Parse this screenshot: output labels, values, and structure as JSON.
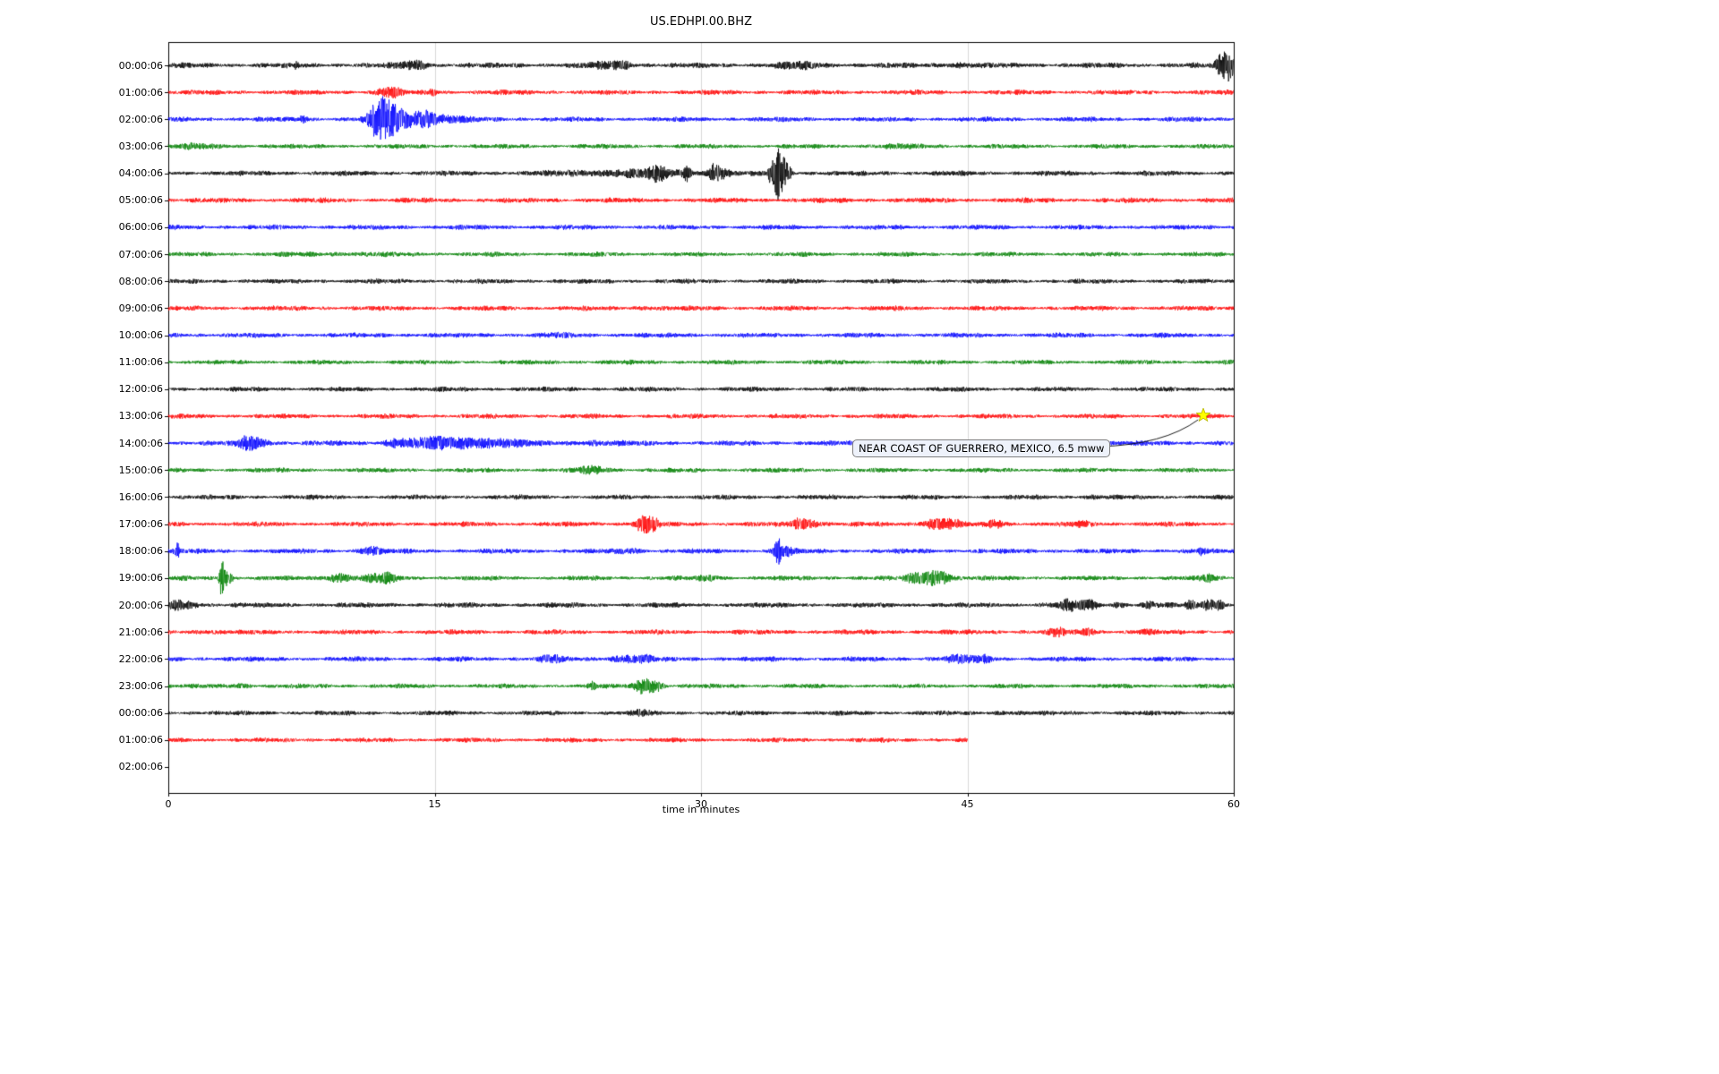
{
  "chart_data": {
    "type": "line",
    "chart_kind": "seismogram-day-plot",
    "title": "US.EDHPI.00.BHZ",
    "xlabel": "time in minutes",
    "xlim": [
      0,
      60
    ],
    "x_ticks": [
      0,
      15,
      30,
      45,
      60
    ],
    "x_tick_labels": [
      "0",
      "15",
      "30",
      "45",
      "60"
    ],
    "grid_minutes": [
      15,
      30,
      45
    ],
    "grid_color": "#d9d9d9",
    "color_cycle": [
      "#000000",
      "#ff0000",
      "#0000ff",
      "#008000"
    ],
    "annotation": {
      "text": "NEAR COAST OF GUERRERO, MEXICO, 6.5 mww",
      "box_color": "#eef2fb",
      "border_color": "#7f7f7f"
    },
    "event_marker": {
      "row_index": 13,
      "row_label": "13:00:06",
      "t_minutes": 58.3,
      "symbol": "star",
      "color": "#ffff00"
    },
    "rows": [
      {
        "label": "00:00:06",
        "color": "#000000",
        "base": 2.8,
        "duration_min": 60,
        "events": [
          {
            "t": 7.2,
            "a": 5,
            "w": 0.08
          },
          {
            "t": 13.6,
            "a": 3,
            "w": 0.5
          },
          {
            "t": 14.3,
            "a": 2.5,
            "w": 0.3
          },
          {
            "t": 24.8,
            "a": 2.5,
            "w": 0.8
          },
          {
            "t": 25.6,
            "a": 2,
            "w": 0.4
          },
          {
            "t": 35.5,
            "a": 2.5,
            "w": 1.0
          },
          {
            "t": 44.5,
            "a": 1.5,
            "w": 0.8
          },
          {
            "t": 59.4,
            "a": 14,
            "w": 0.25
          },
          {
            "t": 59.8,
            "a": 10,
            "w": 0.3
          }
        ]
      },
      {
        "label": "01:00:06",
        "color": "#ff0000",
        "base": 2.6,
        "duration_min": 60,
        "events": [
          {
            "t": 12.2,
            "a": 4,
            "w": 0.35
          },
          {
            "t": 12.8,
            "a": 3,
            "w": 0.25
          },
          {
            "t": 14.9,
            "a": 3.5,
            "w": 0.15
          }
        ]
      },
      {
        "label": "02:00:06",
        "color": "#0000ff",
        "base": 2.6,
        "duration_min": 60,
        "events": [
          {
            "t": 7.6,
            "a": 4,
            "w": 0.15
          },
          {
            "t": 11.8,
            "a": 16,
            "w": 0.35
          },
          {
            "t": 12.4,
            "a": 12,
            "w": 0.5
          },
          {
            "t": 13.3,
            "a": 7,
            "w": 0.8
          },
          {
            "t": 14.6,
            "a": 5,
            "w": 0.3
          },
          {
            "t": 15.2,
            "a": 3.5,
            "w": 1.2
          }
        ]
      },
      {
        "label": "03:00:06",
        "color": "#008000",
        "base": 2.4,
        "duration_min": 60,
        "events": [
          {
            "t": 1.5,
            "a": 1.5,
            "w": 1.0
          },
          {
            "t": 41,
            "a": 1.2,
            "w": 1.0
          }
        ]
      },
      {
        "label": "04:00:06",
        "color": "#000000",
        "base": 2.7,
        "duration_min": 60,
        "events": [
          {
            "t": 26,
            "a": 3,
            "w": 2.5
          },
          {
            "t": 27.6,
            "a": 6,
            "w": 0.3
          },
          {
            "t": 29.2,
            "a": 8,
            "w": 0.15
          },
          {
            "t": 30.7,
            "a": 9,
            "w": 0.2
          },
          {
            "t": 31.2,
            "a": 5,
            "w": 0.3
          },
          {
            "t": 33.9,
            "a": 8,
            "w": 0.1
          },
          {
            "t": 34.3,
            "a": 26,
            "w": 0.18
          },
          {
            "t": 34.7,
            "a": 14,
            "w": 0.25
          }
        ]
      },
      {
        "label": "05:00:06",
        "color": "#ff0000",
        "base": 2.7,
        "duration_min": 60,
        "events": []
      },
      {
        "label": "06:00:06",
        "color": "#0000ff",
        "base": 2.6,
        "duration_min": 60,
        "events": []
      },
      {
        "label": "07:00:06",
        "color": "#008000",
        "base": 2.4,
        "duration_min": 60,
        "events": [
          {
            "t": 10,
            "a": 0.8,
            "w": 2
          }
        ]
      },
      {
        "label": "08:00:06",
        "color": "#000000",
        "base": 2.5,
        "duration_min": 60,
        "events": []
      },
      {
        "label": "09:00:06",
        "color": "#ff0000",
        "base": 2.6,
        "duration_min": 60,
        "events": [
          {
            "t": 27,
            "a": 1,
            "w": 0.5
          }
        ]
      },
      {
        "label": "10:00:06",
        "color": "#0000ff",
        "base": 2.6,
        "duration_min": 60,
        "events": [
          {
            "t": 22,
            "a": 1,
            "w": 0.6
          }
        ]
      },
      {
        "label": "11:00:06",
        "color": "#008000",
        "base": 2.4,
        "duration_min": 60,
        "events": []
      },
      {
        "label": "12:00:06",
        "color": "#000000",
        "base": 2.5,
        "duration_min": 60,
        "events": []
      },
      {
        "label": "13:00:06",
        "color": "#ff0000",
        "base": 2.5,
        "duration_min": 60,
        "events": []
      },
      {
        "label": "14:00:06",
        "color": "#0000ff",
        "base": 2.7,
        "duration_min": 60,
        "events": [
          {
            "t": 4.4,
            "a": 6,
            "w": 0.3
          },
          {
            "t": 5.1,
            "a": 4,
            "w": 0.5
          },
          {
            "t": 12.8,
            "a": 3,
            "w": 0.4
          },
          {
            "t": 14.5,
            "a": 3.5,
            "w": 1.2
          },
          {
            "t": 16.5,
            "a": 3.5,
            "w": 1.5
          },
          {
            "t": 18.5,
            "a": 3,
            "w": 1.2
          },
          {
            "t": 24,
            "a": 1.5,
            "w": 1.0
          }
        ]
      },
      {
        "label": "15:00:06",
        "color": "#008000",
        "base": 2.4,
        "duration_min": 60,
        "events": [
          {
            "t": 23.5,
            "a": 2,
            "w": 0.3
          },
          {
            "t": 24.2,
            "a": 2.5,
            "w": 0.5
          }
        ]
      },
      {
        "label": "16:00:06",
        "color": "#000000",
        "base": 2.5,
        "duration_min": 60,
        "events": [
          {
            "t": 52,
            "a": 1,
            "w": 0.5
          }
        ]
      },
      {
        "label": "17:00:06",
        "color": "#ff0000",
        "base": 2.6,
        "duration_min": 60,
        "events": [
          {
            "t": 26.7,
            "a": 8,
            "w": 0.3
          },
          {
            "t": 27.3,
            "a": 7,
            "w": 0.25
          },
          {
            "t": 35.4,
            "a": 3,
            "w": 0.3
          },
          {
            "t": 36,
            "a": 4.5,
            "w": 0.5
          },
          {
            "t": 43.3,
            "a": 5,
            "w": 0.6
          },
          {
            "t": 44.2,
            "a": 3,
            "w": 0.4
          },
          {
            "t": 46.6,
            "a": 4,
            "w": 0.3
          },
          {
            "t": 51.5,
            "a": 2,
            "w": 0.4
          }
        ]
      },
      {
        "label": "18:00:06",
        "color": "#0000ff",
        "base": 2.6,
        "duration_min": 60,
        "events": [
          {
            "t": 0.5,
            "a": 7,
            "w": 0.1
          },
          {
            "t": 11.4,
            "a": 4,
            "w": 0.4
          },
          {
            "t": 26,
            "a": 2,
            "w": 0.5
          },
          {
            "t": 34.3,
            "a": 12,
            "w": 0.15
          },
          {
            "t": 34.7,
            "a": 6,
            "w": 0.3
          },
          {
            "t": 58.2,
            "a": 4,
            "w": 0.12
          }
        ]
      },
      {
        "label": "19:00:06",
        "color": "#008000",
        "base": 2.5,
        "duration_min": 60,
        "events": [
          {
            "t": 3.0,
            "a": 18,
            "w": 0.1
          },
          {
            "t": 3.3,
            "a": 8,
            "w": 0.2
          },
          {
            "t": 9.6,
            "a": 4,
            "w": 0.6
          },
          {
            "t": 11.5,
            "a": 3,
            "w": 0.3
          },
          {
            "t": 12.3,
            "a": 4.5,
            "w": 0.4
          },
          {
            "t": 30.5,
            "a": 2,
            "w": 0.4
          },
          {
            "t": 41.9,
            "a": 3,
            "w": 0.3
          },
          {
            "t": 42.8,
            "a": 6,
            "w": 0.5
          },
          {
            "t": 43.6,
            "a": 5,
            "w": 0.4
          },
          {
            "t": 58.6,
            "a": 3.5,
            "w": 0.3
          }
        ]
      },
      {
        "label": "20:00:06",
        "color": "#000000",
        "base": 2.7,
        "duration_min": 60,
        "events": [
          {
            "t": 0.4,
            "a": 4,
            "w": 0.3
          },
          {
            "t": 1.2,
            "a": 3,
            "w": 0.4
          },
          {
            "t": 50.8,
            "a": 5,
            "w": 0.5
          },
          {
            "t": 51.9,
            "a": 4,
            "w": 0.3
          },
          {
            "t": 53.5,
            "a": 2,
            "w": 0.3
          },
          {
            "t": 55.3,
            "a": 2.5,
            "w": 0.3
          },
          {
            "t": 57.6,
            "a": 5,
            "w": 0.2
          },
          {
            "t": 58.6,
            "a": 6,
            "w": 0.25
          },
          {
            "t": 59.2,
            "a": 5,
            "w": 0.2
          }
        ]
      },
      {
        "label": "21:00:06",
        "color": "#ff0000",
        "base": 2.6,
        "duration_min": 60,
        "events": [
          {
            "t": 2,
            "a": 1,
            "w": 0.5
          },
          {
            "t": 50.1,
            "a": 4,
            "w": 0.3
          },
          {
            "t": 51.8,
            "a": 3.5,
            "w": 0.25
          },
          {
            "t": 55,
            "a": 1.5,
            "w": 0.3
          }
        ]
      },
      {
        "label": "22:00:06",
        "color": "#0000ff",
        "base": 2.6,
        "duration_min": 60,
        "events": [
          {
            "t": 21.4,
            "a": 3,
            "w": 0.3
          },
          {
            "t": 21.9,
            "a": 2,
            "w": 0.2
          },
          {
            "t": 25.8,
            "a": 3.5,
            "w": 0.6
          },
          {
            "t": 27,
            "a": 2.5,
            "w": 0.3
          },
          {
            "t": 44.6,
            "a": 3.5,
            "w": 0.6
          },
          {
            "t": 46,
            "a": 3,
            "w": 0.3
          }
        ]
      },
      {
        "label": "23:00:06",
        "color": "#008000",
        "base": 2.4,
        "duration_min": 60,
        "events": [
          {
            "t": 4,
            "a": 1.5,
            "w": 0.5
          },
          {
            "t": 23.9,
            "a": 4,
            "w": 0.15
          },
          {
            "t": 26.7,
            "a": 8,
            "w": 0.3
          },
          {
            "t": 27.4,
            "a": 6,
            "w": 0.3
          }
        ]
      },
      {
        "label": "00:00:06",
        "color": "#000000",
        "base": 2.5,
        "duration_min": 60,
        "events": [
          {
            "t": 26.7,
            "a": 2.5,
            "w": 0.3
          },
          {
            "t": 47,
            "a": 1,
            "w": 0.5
          }
        ]
      },
      {
        "label": "01:00:06",
        "color": "#ff0000",
        "base": 2.4,
        "duration_min": 45,
        "events": []
      },
      {
        "label": "02:00:06",
        "color": "#0000ff",
        "base": 0,
        "duration_min": 0,
        "events": []
      }
    ]
  }
}
